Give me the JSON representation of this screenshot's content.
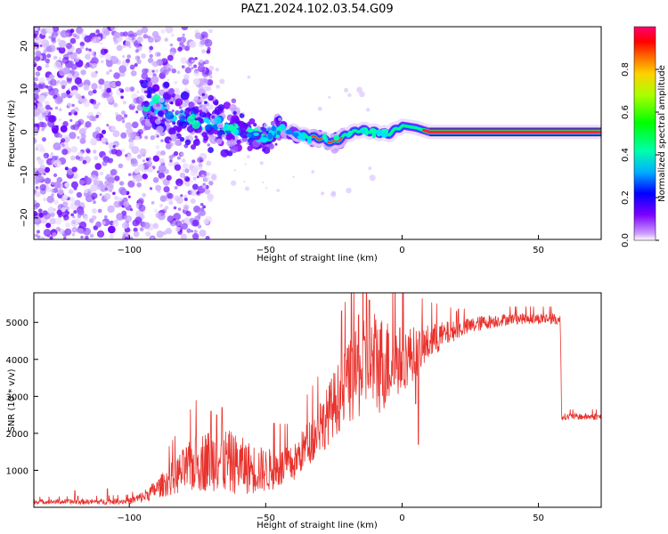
{
  "title": "PAZ1.2024.102.03.54.G09",
  "chart_data": [
    {
      "type": "heatmap",
      "xlabel": "Height of straight line (km)",
      "ylabel": "Frequency (Hz)",
      "xlim": [
        -135,
        73
      ],
      "ylim": [
        -25,
        24.5
      ],
      "xticks": [
        -100,
        -50,
        0,
        50
      ],
      "yticks": [
        -20,
        -10,
        0,
        10,
        20
      ],
      "colorbar": {
        "label": "Normalized spectral amplitude",
        "ticks": [
          0.0,
          0.2,
          0.4,
          0.6,
          0.8
        ],
        "range": [
          0,
          1
        ],
        "colormap": "gist_rainbow"
      },
      "ridge": {
        "x": [
          -90,
          -80,
          -70,
          -60,
          -50,
          -45,
          -40,
          -35,
          -30,
          -25,
          -20,
          -15,
          -10,
          -5,
          0,
          5,
          10,
          20,
          30,
          40,
          50,
          60,
          72
        ],
        "y": [
          6,
          3.5,
          2,
          0.5,
          -1,
          0.5,
          0,
          -1,
          -1.5,
          -2.5,
          -0.5,
          0.5,
          0,
          -0.5,
          1.5,
          1,
          0,
          0,
          0,
          0,
          0,
          0,
          0
        ]
      }
    },
    {
      "type": "line",
      "xlabel": "Height of straight line (km)",
      "ylabel": "SNR (10 * v/v)",
      "xlim": [
        -135,
        73
      ],
      "ylim": [
        0,
        5800
      ],
      "xticks": [
        -100,
        -50,
        0,
        50
      ],
      "yticks": [
        1000,
        2000,
        3000,
        4000,
        5000
      ],
      "color": "#e8322d",
      "envelope": {
        "x": [
          -135,
          -110,
          -100,
          -95,
          -90,
          -85,
          -80,
          -75,
          -70,
          -65,
          -60,
          -55,
          -50,
          -45,
          -40,
          -35,
          -30,
          -25,
          -20,
          -15,
          -10,
          -5,
          0,
          5,
          10,
          15,
          20,
          25,
          30,
          35,
          40,
          45,
          50,
          55,
          58,
          58.5,
          62,
          72
        ],
        "y": [
          150,
          150,
          170,
          280,
          500,
          750,
          1000,
          1200,
          1300,
          1250,
          1150,
          1050,
          1000,
          1050,
          1150,
          1700,
          2100,
          2800,
          3300,
          3700,
          3900,
          3900,
          4000,
          4200,
          4450,
          4650,
          4800,
          4900,
          5000,
          5050,
          5100,
          5100,
          5100,
          5100,
          5050,
          2450,
          2450,
          2450
        ]
      },
      "spread": {
        "x": [
          -135,
          -100,
          -90,
          -75,
          -65,
          -50,
          -40,
          -30,
          -20,
          -10,
          0,
          10,
          20,
          40,
          58,
          59,
          72
        ],
        "y": [
          60,
          80,
          250,
          800,
          900,
          600,
          500,
          700,
          1100,
          1500,
          900,
          500,
          250,
          150,
          150,
          90,
          90
        ]
      },
      "peaks": {
        "x": [
          -120,
          -108,
          -70,
          -68,
          -66,
          -30,
          -20,
          -16,
          -13,
          -12,
          -8,
          -5,
          5,
          6,
          20
        ],
        "y": [
          450,
          500,
          2600,
          2500,
          2700,
          2800,
          4300,
          5200,
          5800,
          5600,
          4800,
          4700,
          2800,
          1700,
          5300
        ]
      }
    }
  ]
}
